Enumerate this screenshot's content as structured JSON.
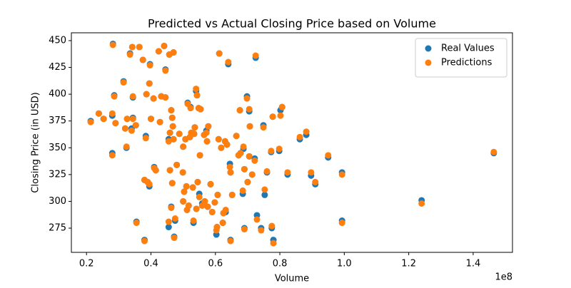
{
  "chart_data": {
    "type": "scatter",
    "title": "Predicted vs Actual Closing Price based on Volume",
    "xlabel": "Volume",
    "ylabel": "Closing Price (in USD)",
    "x_offset_label": "1e8",
    "x": [
      0.213,
      0.238,
      0.253,
      0.28,
      0.28,
      0.282,
      0.286,
      0.29,
      0.315,
      0.32,
      0.324,
      0.326,
      0.335,
      0.34,
      0.342,
      0.344,
      0.344,
      0.353,
      0.355,
      0.364,
      0.375,
      0.38,
      0.38,
      0.384,
      0.386,
      0.39,
      0.395,
      0.395,
      0.397,
      0.4,
      0.408,
      0.41,
      0.415,
      0.424,
      0.428,
      0.432,
      0.441,
      0.445,
      0.445,
      0.455,
      0.455,
      0.457,
      0.459,
      0.459,
      0.463,
      0.463,
      0.466,
      0.466,
      0.468,
      0.47,
      0.47,
      0.472,
      0.475,
      0.48,
      0.488,
      0.499,
      0.5,
      0.5,
      0.503,
      0.507,
      0.51,
      0.512,
      0.514,
      0.517,
      0.521,
      0.523,
      0.525,
      0.53,
      0.532,
      0.534,
      0.536,
      0.54,
      0.541,
      0.543,
      0.545,
      0.548,
      0.55,
      0.552,
      0.554,
      0.559,
      0.565,
      0.567,
      0.572,
      0.574,
      0.576,
      0.578,
      0.585,
      0.59,
      0.598,
      0.603,
      0.605,
      0.607,
      0.61,
      0.612,
      0.618,
      0.623,
      0.625,
      0.63,
      0.632,
      0.636,
      0.64,
      0.645,
      0.647,
      0.647,
      0.652,
      0.665,
      0.672,
      0.676,
      0.678,
      0.685,
      0.687,
      0.69,
      0.69,
      0.698,
      0.7,
      0.705,
      0.705,
      0.707,
      0.714,
      0.722,
      0.725,
      0.729,
      0.742,
      0.749,
      0.753,
      0.76,
      0.773,
      0.775,
      0.778,
      0.78,
      0.798,
      0.802,
      0.807,
      0.824,
      0.862,
      0.882,
      0.897,
      0.91,
      0.95,
      0.993,
      0.993,
      1.24,
      1.464
    ],
    "series": [
      {
        "name": "Real Values",
        "color": "#1f77b4",
        "values": [
          375,
          382,
          377,
          345,
          380,
          447,
          399,
          373,
          412,
          368,
          350,
          377,
          438,
          368,
          444,
          397,
          378,
          371,
          281,
          444,
          432,
          264,
          320,
          361,
          400,
          318,
          410,
          314,
          428,
          377,
          396,
          332,
          329,
          440,
          374,
          398,
          445,
          397,
          423,
          276,
          358,
          437,
          364,
          329,
          385,
          295,
          317,
          378,
          370,
          358,
          439,
          267,
          282,
          334,
          363,
          327,
          351,
          300,
          309,
          358,
          314,
          292,
          392,
          296,
          360,
          388,
          364,
          313,
          280,
          363,
          369,
          403,
          293,
          399,
          318,
          387,
          307,
          343,
          386,
          298,
          362,
          300,
          366,
          356,
          295,
          370,
          316,
          290,
          299,
          269,
          276,
          306,
          358,
          438,
          350,
          280,
          289,
          356,
          290,
          353,
          428,
          335,
          327,
          264,
          306,
          361,
          343,
          385,
          345,
          307,
          349,
          330,
          275,
          398,
          318,
          342,
          384,
          370,
          325,
          340,
          434,
          287,
          275,
          371,
          306,
          327,
          346,
          275,
          379,
          264,
          347,
          385,
          388,
          325,
          358,
          362,
          324,
          316,
          341,
          327,
          282,
          301,
          345
        ]
      },
      {
        "name": "Predictions",
        "color": "#ff7f0e",
        "values": [
          374,
          382,
          377,
          343,
          382,
          446,
          398,
          373,
          411,
          368,
          351,
          377,
          437,
          366,
          444,
          398,
          377,
          371,
          280,
          444,
          432,
          263,
          320,
          359,
          400,
          318,
          410,
          316,
          427,
          377,
          396,
          331,
          329,
          440,
          374,
          398,
          445,
          397,
          422,
          281,
          356,
          437,
          364,
          329,
          385,
          294,
          317,
          378,
          370,
          358,
          439,
          266,
          284,
          334,
          363,
          327,
          351,
          300,
          309,
          358,
          314,
          292,
          391,
          296,
          360,
          387,
          364,
          313,
          282,
          363,
          369,
          405,
          293,
          399,
          318,
          387,
          304,
          343,
          386,
          296,
          362,
          300,
          364,
          356,
          295,
          370,
          316,
          290,
          299,
          273,
          276,
          306,
          358,
          438,
          350,
          280,
          289,
          356,
          292,
          353,
          430,
          332,
          327,
          263,
          306,
          361,
          343,
          385,
          345,
          310,
          351,
          330,
          274,
          396,
          318,
          342,
          386,
          370,
          325,
          338,
          436,
          283,
          273,
          369,
          311,
          328,
          347,
          277,
          379,
          261,
          349,
          380,
          388,
          327,
          360,
          365,
          327,
          318,
          343,
          325,
          280,
          298,
          346
        ]
      }
    ],
    "xlim": [
      0.153,
      1.522
    ],
    "ylim": [
      252.4,
      457.3
    ],
    "xticks": [
      0.2,
      0.4,
      0.6,
      0.8,
      {
        "value": 1,
        "label": "1.0"
      },
      1.2,
      1.4
    ],
    "yticks": [
      275,
      300,
      325,
      350,
      375,
      400,
      425,
      450
    ],
    "legend": "upper right"
  }
}
